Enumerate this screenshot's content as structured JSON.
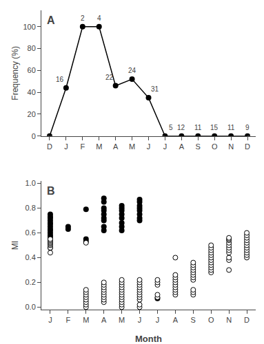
{
  "chart_data": [
    {
      "type": "line",
      "title": "A",
      "y_label": "Frequency (%)",
      "categories": [
        "D",
        "J",
        "F",
        "M",
        "A",
        "M",
        "J",
        "J",
        "A",
        "S",
        "O",
        "N",
        "D"
      ],
      "values": [
        0,
        44,
        100,
        100,
        46,
        52,
        35,
        0,
        0,
        0,
        0,
        0,
        0
      ],
      "annotations": [
        null,
        "16",
        "2",
        "4",
        "22",
        "24",
        "31",
        "5",
        "12",
        "11",
        "15",
        "11",
        "9"
      ],
      "color": "black",
      "marker": "filled",
      "ylim": [
        0,
        115
      ],
      "yticks": [
        0,
        20,
        40,
        60,
        80,
        100
      ],
      "grid": false
    },
    {
      "type": "scatter",
      "title": "B",
      "x_label": "Month",
      "y_label": "MI",
      "categories": [
        "J",
        "F",
        "M",
        "A",
        "M",
        "J",
        "J",
        "A",
        "S",
        "O",
        "N",
        "D"
      ],
      "series": [
        {
          "color": "black",
          "marker": "filled",
          "x": [
            0,
            0,
            0,
            0,
            0,
            0,
            0,
            0,
            0,
            0,
            0,
            0,
            0,
            0,
            1,
            1,
            2,
            2,
            2,
            3,
            3,
            3,
            3,
            3,
            3,
            3,
            3,
            3,
            4,
            4,
            4,
            4,
            4,
            4,
            4,
            4,
            5,
            5,
            5,
            5,
            5,
            5,
            5,
            5,
            6
          ],
          "values": [
            0.48,
            0.55,
            0.57,
            0.58,
            0.6,
            0.62,
            0.63,
            0.65,
            0.67,
            0.68,
            0.7,
            0.72,
            0.73,
            0.75,
            0.63,
            0.65,
            0.53,
            0.55,
            0.79,
            0.62,
            0.65,
            0.7,
            0.72,
            0.75,
            0.78,
            0.8,
            0.85,
            0.88,
            0.62,
            0.65,
            0.68,
            0.72,
            0.75,
            0.78,
            0.8,
            0.82,
            0.7,
            0.72,
            0.75,
            0.78,
            0.8,
            0.82,
            0.85,
            0.87,
            0.07
          ]
        },
        {
          "color": "black",
          "marker": "open",
          "x": [
            0,
            0,
            0,
            0,
            0,
            0,
            0,
            0,
            2,
            2,
            2,
            2,
            2,
            2,
            2,
            2,
            2,
            3,
            3,
            3,
            3,
            3,
            3,
            3,
            3,
            3,
            4,
            4,
            4,
            4,
            4,
            4,
            4,
            4,
            4,
            4,
            4,
            4,
            5,
            5,
            5,
            5,
            5,
            5,
            5,
            5,
            5,
            5,
            5,
            6,
            6,
            6,
            6,
            6,
            7,
            7,
            7,
            7,
            7,
            7,
            7,
            7,
            7,
            7,
            8,
            8,
            8,
            8,
            8,
            8,
            8,
            8,
            8,
            8,
            8,
            9,
            9,
            9,
            9,
            9,
            9,
            9,
            9,
            9,
            9,
            9,
            9,
            10,
            10,
            10,
            10,
            10,
            10,
            10,
            10,
            10,
            10,
            10,
            11,
            11,
            11,
            11,
            11,
            11,
            11,
            11,
            11,
            11,
            11
          ],
          "values": [
            0.44,
            0.48,
            0.5,
            0.51,
            0.52,
            0.53,
            0.54,
            0.55,
            0,
            0.02,
            0.04,
            0.06,
            0.08,
            0.1,
            0.12,
            0.14,
            0.52,
            0.04,
            0.06,
            0.08,
            0.1,
            0.12,
            0.14,
            0.16,
            0.18,
            0.2,
            0,
            0.02,
            0.04,
            0.06,
            0.08,
            0.1,
            0.12,
            0.14,
            0.16,
            0.18,
            0.2,
            0.22,
            0,
            0.02,
            0.06,
            0.08,
            0.1,
            0.12,
            0.14,
            0.16,
            0.18,
            0.2,
            0.22,
            0.08,
            0.1,
            0.18,
            0.2,
            0.22,
            0.1,
            0.12,
            0.14,
            0.16,
            0.18,
            0.2,
            0.22,
            0.24,
            0.26,
            0.4,
            0.1,
            0.12,
            0.14,
            0.22,
            0.24,
            0.26,
            0.28,
            0.3,
            0.32,
            0.34,
            0.36,
            0.28,
            0.3,
            0.32,
            0.34,
            0.36,
            0.38,
            0.4,
            0.42,
            0.44,
            0.46,
            0.48,
            0.5,
            0.3,
            0.38,
            0.4,
            0.44,
            0.46,
            0.48,
            0.5,
            0.52,
            0.54,
            0.55,
            0.56,
            0.4,
            0.42,
            0.44,
            0.46,
            0.48,
            0.5,
            0.52,
            0.54,
            0.56,
            0.58,
            0.6
          ]
        }
      ],
      "ylim": [
        -0.02,
        1.02
      ],
      "yticks": [
        {
          "value": 0,
          "label": "0.0"
        },
        0.2,
        0.4,
        0.6,
        0.8,
        {
          "value": 1,
          "label": "1.0"
        }
      ],
      "grid": false
    }
  ]
}
